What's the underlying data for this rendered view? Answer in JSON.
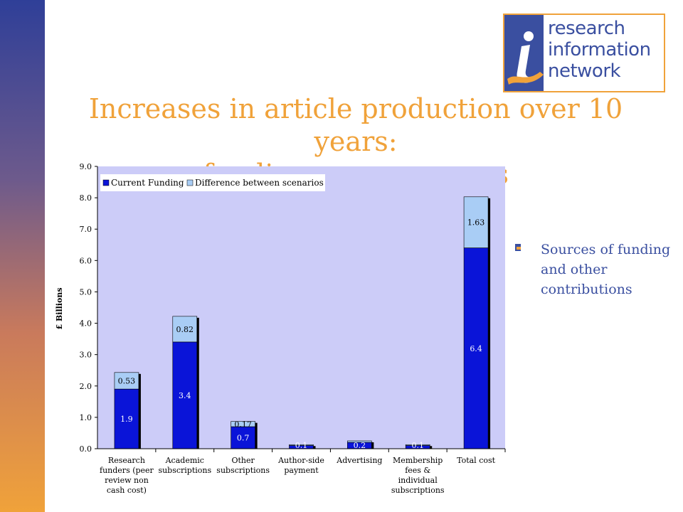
{
  "logo": {
    "line1": "research",
    "line2": "information",
    "line3": "network"
  },
  "title": {
    "line1": "Increases in article production over 10 years:",
    "line2": "funding consequences"
  },
  "note": {
    "text": "Sources of funding and other contributions"
  },
  "colors": {
    "accent": "#f0a23a",
    "brand": "#3a4fa0",
    "current": "#0a14d8",
    "difference": "#a9cdf5",
    "plot_bg": "#ccccf8"
  },
  "chart_data": {
    "type": "bar",
    "stacked": true,
    "ylabel": "£ Billions",
    "ylim": [
      0,
      9
    ],
    "yticks": [
      "0.0",
      "1.0",
      "2.0",
      "3.0",
      "4.0",
      "5.0",
      "6.0",
      "7.0",
      "8.0",
      "9.0"
    ],
    "categories": [
      [
        "Research",
        "funders (peer",
        "review non",
        "cash cost)"
      ],
      [
        "Academic",
        "subscriptions"
      ],
      [
        "Other",
        "subscriptions"
      ],
      [
        "Author-side",
        "payment"
      ],
      [
        "Advertising"
      ],
      [
        "Membership",
        "fees &",
        "individual",
        "subscriptions"
      ],
      [
        "Total cost"
      ]
    ],
    "series": [
      {
        "name": "Current Funding",
        "values": [
          1.9,
          3.4,
          0.7,
          0.1,
          0.2,
          0.1,
          6.4
        ],
        "labels": [
          "1.9",
          "3.4",
          "0.7",
          "0.1",
          "0.2",
          "0.1",
          "6.4"
        ]
      },
      {
        "name": "Difference between scenarios",
        "values": [
          0.53,
          0.82,
          0.17,
          0.03,
          0.05,
          0.03,
          1.63
        ],
        "labels": [
          "0.53",
          "0.82",
          "0.17",
          "",
          "",
          "",
          "1.63"
        ]
      }
    ],
    "legend": "top-left",
    "grid": false
  }
}
